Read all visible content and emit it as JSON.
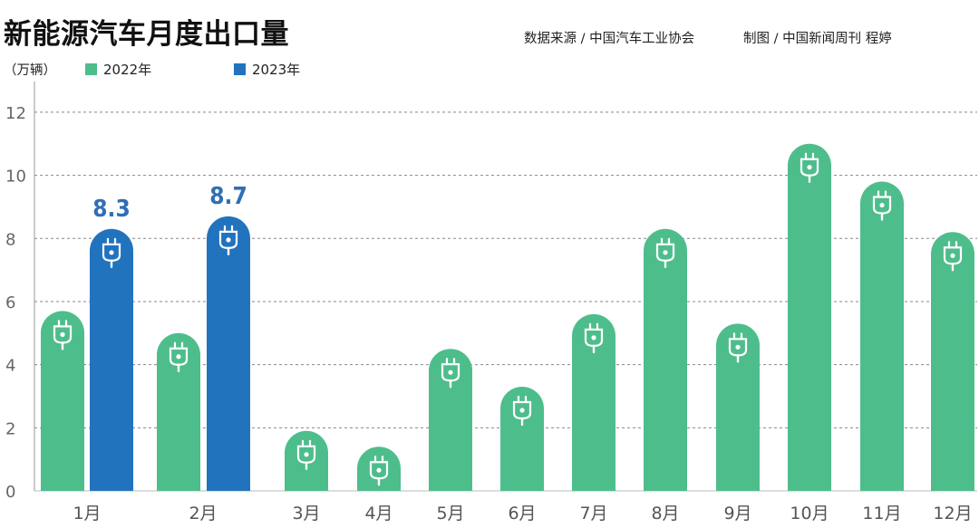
{
  "header": {
    "title": "新能源汽车月度出口量",
    "source": "数据来源 / 中国汽车工业协会",
    "credit": "制图 / 中国新闻周刊 程婷",
    "unit": "（万辆）"
  },
  "colors": {
    "series_2022": "#4ebd8c",
    "series_2023": "#2273be",
    "grid": "#888888",
    "label_2023": "#2e6fb5"
  },
  "icons": {
    "bar_icon": "plug-icon"
  },
  "chart_data": {
    "type": "bar",
    "categories": [
      "1月",
      "2月",
      "3月",
      "4月",
      "5月",
      "6月",
      "7月",
      "8月",
      "9月",
      "10月",
      "11月",
      "12月"
    ],
    "series": [
      {
        "name": "2022年",
        "values": [
          5.7,
          5.0,
          1.9,
          1.4,
          4.5,
          3.3,
          5.6,
          8.3,
          5.3,
          11.0,
          9.8,
          8.2
        ]
      },
      {
        "name": "2023年",
        "values": [
          8.3,
          8.7,
          null,
          null,
          null,
          null,
          null,
          null,
          null,
          null,
          null,
          null
        ]
      }
    ],
    "data_labels": [
      "8.3",
      "8.7"
    ],
    "y_ticks": [
      "0",
      "2",
      "4",
      "6",
      "8",
      "10",
      "12"
    ],
    "ylim": [
      0,
      12.8
    ],
    "grid": true,
    "legend_position": "top-left",
    "xlabel": "",
    "ylabel": "（万辆）"
  }
}
